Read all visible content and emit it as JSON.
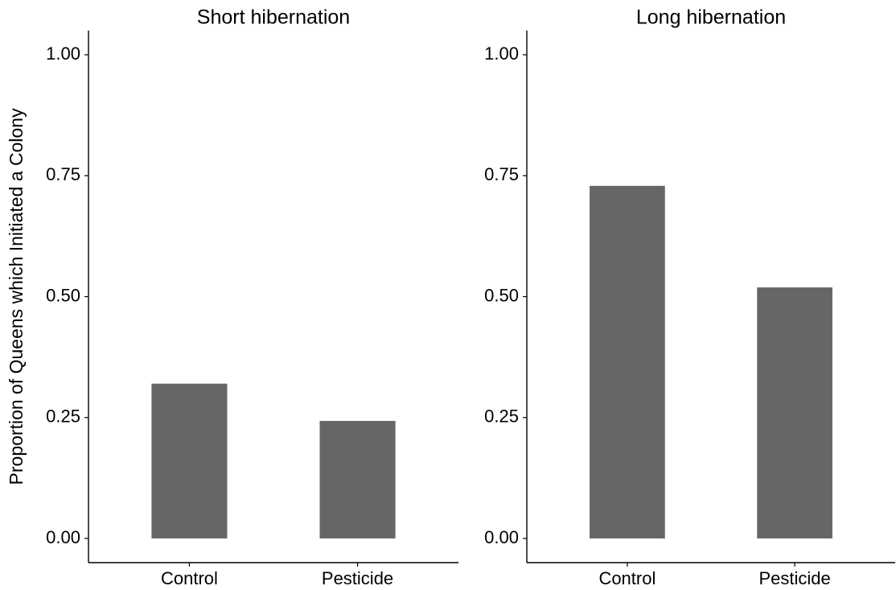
{
  "chart_data": [
    {
      "type": "bar",
      "title": "Short hibernation",
      "y_label": "Proportion of Queens which Initiated a Colony",
      "categories": [
        "Control",
        "Pesticide"
      ],
      "values": [
        0.32,
        0.243
      ],
      "color": "#666666",
      "ylim": [
        -0.05,
        1.05
      ],
      "yticks": [
        {
          "value": 0,
          "label": "0.00"
        },
        {
          "value": 0.25,
          "label": "0.25"
        },
        {
          "value": 0.5,
          "label": "0.50"
        },
        {
          "value": 0.75,
          "label": "0.75"
        },
        {
          "value": 1,
          "label": "1.00"
        }
      ]
    },
    {
      "type": "bar",
      "title": "Long hibernation",
      "categories": [
        "Control",
        "Pesticide"
      ],
      "values": [
        0.729,
        0.519
      ],
      "color": "#666666",
      "ylim": [
        -0.05,
        1.05
      ],
      "yticks": [
        {
          "value": 0,
          "label": "0.00"
        },
        {
          "value": 0.25,
          "label": "0.25"
        },
        {
          "value": 0.5,
          "label": "0.50"
        },
        {
          "value": 0.75,
          "label": "0.75"
        },
        {
          "value": 1,
          "label": "1.00"
        }
      ]
    }
  ]
}
